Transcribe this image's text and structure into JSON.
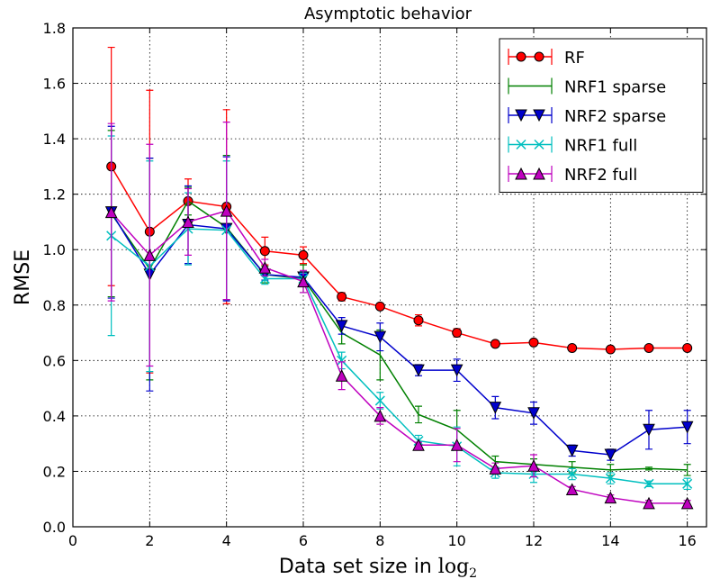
{
  "chart_data": {
    "type": "line",
    "title": "Asymptotic behavior",
    "xlabel": "Data set size in",
    "xlabel_math": "log",
    "xlabel_sub": "2",
    "ylabel": "RMSE",
    "xlim": [
      0,
      16.5
    ],
    "ylim": [
      0.0,
      1.8
    ],
    "xticks": [
      0,
      2,
      4,
      6,
      8,
      10,
      12,
      14,
      16
    ],
    "yticks": [
      0.0,
      0.2,
      0.4,
      0.6,
      0.8,
      1.0,
      1.2,
      1.4,
      1.6,
      1.8
    ],
    "xtick_labels": [
      "0",
      "2",
      "4",
      "6",
      "8",
      "10",
      "12",
      "14",
      "16"
    ],
    "ytick_labels": [
      "0.0",
      "0.2",
      "0.4",
      "0.6",
      "0.8",
      "1.0",
      "1.2",
      "1.4",
      "1.6",
      "1.8"
    ],
    "grid": true,
    "legend_position": "top-right",
    "x": [
      1,
      2,
      3,
      4,
      5,
      6,
      7,
      8,
      9,
      10,
      11,
      12,
      13,
      14,
      15,
      16
    ],
    "series": [
      {
        "name": "RF",
        "color": "#ff0000",
        "marker": "circle",
        "values": [
          1.3,
          1.065,
          1.175,
          1.155,
          0.995,
          0.98,
          0.83,
          0.795,
          0.745,
          0.7,
          0.66,
          0.665,
          0.645,
          0.64,
          0.645,
          0.645
        ],
        "err": [
          0.43,
          0.51,
          0.08,
          0.35,
          0.05,
          0.03,
          0.015,
          0.01,
          0.02,
          0.015,
          0.01,
          0.01,
          0.01,
          0.01,
          0.01,
          0.01
        ]
      },
      {
        "name": "NRF1 sparse",
        "color": "#008000",
        "marker": "none",
        "values": [
          1.13,
          0.93,
          1.175,
          1.08,
          0.91,
          0.895,
          0.7,
          0.62,
          0.405,
          0.35,
          0.235,
          0.225,
          0.215,
          0.205,
          0.21,
          0.205
        ],
        "err": [
          0.3,
          0.4,
          0.05,
          0.26,
          0.03,
          0.05,
          0.04,
          0.09,
          0.03,
          0.07,
          0.02,
          0.02,
          0.02,
          0.02,
          0.005,
          0.02
        ]
      },
      {
        "name": "NRF2 sparse",
        "color": "#0000cc",
        "marker": "triangle-down",
        "values": [
          1.135,
          0.91,
          1.09,
          1.075,
          0.91,
          0.9,
          0.725,
          0.685,
          0.565,
          0.565,
          0.43,
          0.41,
          0.275,
          0.26,
          0.35,
          0.36
        ],
        "err": [
          0.31,
          0.42,
          0.14,
          0.26,
          0.02,
          0.02,
          0.03,
          0.05,
          0.02,
          0.04,
          0.04,
          0.04,
          0.02,
          0.02,
          0.07,
          0.06
        ]
      },
      {
        "name": "NRF1 full",
        "color": "#00bfbf",
        "marker": "x",
        "values": [
          1.05,
          0.94,
          1.075,
          1.07,
          0.895,
          0.895,
          0.6,
          0.455,
          0.31,
          0.29,
          0.195,
          0.19,
          0.19,
          0.175,
          0.155,
          0.155
        ],
        "err": [
          0.36,
          0.38,
          0.13,
          0.25,
          0.02,
          0.02,
          0.03,
          0.03,
          0.02,
          0.07,
          0.02,
          0.03,
          0.02,
          0.02,
          0.01,
          0.02
        ]
      },
      {
        "name": "NRF2 full",
        "color": "#bf00bf",
        "marker": "triangle-up",
        "values": [
          1.135,
          0.98,
          1.1,
          1.14,
          0.935,
          0.885,
          0.545,
          0.4,
          0.295,
          0.295,
          0.21,
          0.22,
          0.135,
          0.105,
          0.085,
          0.085
        ],
        "err": [
          0.32,
          0.4,
          0.12,
          0.32,
          0.03,
          0.04,
          0.05,
          0.03,
          0.01,
          0.06,
          0.02,
          0.04,
          0.01,
          0.01,
          0.01,
          0.01
        ]
      }
    ]
  }
}
